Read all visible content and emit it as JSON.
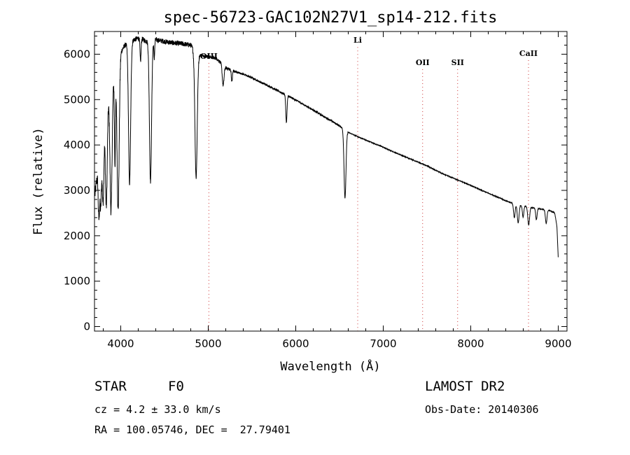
{
  "chart_data": {
    "type": "line",
    "title": "spec-56723-GAC102N27V1_sp14-212.fits",
    "xlabel": "Wavelength (Å)",
    "ylabel": "Flux (relative)",
    "xlim": [
      3700,
      9100
    ],
    "ylim": [
      -100,
      6500
    ],
    "xticks": [
      4000,
      5000,
      6000,
      7000,
      8000,
      9000
    ],
    "yticks": [
      0,
      1000,
      2000,
      3000,
      4000,
      5000,
      6000
    ],
    "grid": false,
    "line_color": "#000000",
    "marker_color": "#cc3333",
    "continuum": [
      [
        3705,
        2900
      ],
      [
        3730,
        3300
      ],
      [
        3760,
        4000
      ],
      [
        3800,
        4700
      ],
      [
        3840,
        5000
      ],
      [
        3880,
        5200
      ],
      [
        3920,
        5500
      ],
      [
        3960,
        5800
      ],
      [
        4000,
        6050
      ],
      [
        4050,
        6200
      ],
      [
        4100,
        6250
      ],
      [
        4150,
        6320
      ],
      [
        4200,
        6350
      ],
      [
        4250,
        6330
      ],
      [
        4300,
        6280
      ],
      [
        4350,
        6300
      ],
      [
        4400,
        6320
      ],
      [
        4450,
        6300
      ],
      [
        4500,
        6280
      ],
      [
        4600,
        6250
      ],
      [
        4700,
        6230
      ],
      [
        4800,
        6200
      ],
      [
        4850,
        6050
      ],
      [
        4900,
        5980
      ],
      [
        5000,
        5950
      ],
      [
        5100,
        5900
      ],
      [
        5200,
        5700
      ],
      [
        5300,
        5620
      ],
      [
        5400,
        5560
      ],
      [
        5500,
        5480
      ],
      [
        5600,
        5380
      ],
      [
        5700,
        5290
      ],
      [
        5800,
        5190
      ],
      [
        5900,
        5090
      ],
      [
        6000,
        4990
      ],
      [
        6100,
        4880
      ],
      [
        6200,
        4770
      ],
      [
        6300,
        4650
      ],
      [
        6400,
        4540
      ],
      [
        6500,
        4420
      ],
      [
        6600,
        4280
      ],
      [
        6700,
        4190
      ],
      [
        6800,
        4110
      ],
      [
        6900,
        4030
      ],
      [
        7000,
        3950
      ],
      [
        7100,
        3860
      ],
      [
        7200,
        3780
      ],
      [
        7300,
        3700
      ],
      [
        7400,
        3620
      ],
      [
        7500,
        3540
      ],
      [
        7600,
        3440
      ],
      [
        7700,
        3350
      ],
      [
        7800,
        3270
      ],
      [
        7900,
        3190
      ],
      [
        8000,
        3110
      ],
      [
        8100,
        3020
      ],
      [
        8200,
        2940
      ],
      [
        8300,
        2860
      ],
      [
        8400,
        2770
      ],
      [
        8500,
        2700
      ],
      [
        8600,
        2660
      ],
      [
        8700,
        2620
      ],
      [
        8800,
        2590
      ],
      [
        8900,
        2560
      ],
      [
        8960,
        2500
      ],
      [
        8985,
        2200
      ],
      [
        9000,
        1500
      ]
    ],
    "absorption_lines": [
      {
        "x": 3750,
        "depth": 1300,
        "width": 8
      },
      {
        "x": 3771,
        "depth": 1500,
        "width": 9
      },
      {
        "x": 3798,
        "depth": 1900,
        "width": 10
      },
      {
        "x": 3835,
        "depth": 2300,
        "width": 11
      },
      {
        "x": 3889,
        "depth": 2700,
        "width": 12
      },
      {
        "x": 3934,
        "depth": 2000,
        "width": 6
      },
      {
        "x": 3970,
        "depth": 3300,
        "width": 12
      },
      {
        "x": 4101,
        "depth": 3100,
        "width": 12
      },
      {
        "x": 4226,
        "depth": 500,
        "width": 6
      },
      {
        "x": 4340,
        "depth": 3100,
        "width": 12
      },
      {
        "x": 4383,
        "depth": 400,
        "width": 5
      },
      {
        "x": 4861,
        "depth": 2750,
        "width": 13
      },
      {
        "x": 5170,
        "depth": 450,
        "width": 10
      },
      {
        "x": 5270,
        "depth": 250,
        "width": 6
      },
      {
        "x": 5893,
        "depth": 600,
        "width": 7
      },
      {
        "x": 6563,
        "depth": 1500,
        "width": 11
      },
      {
        "x": 8498,
        "depth": 300,
        "width": 9
      },
      {
        "x": 8542,
        "depth": 400,
        "width": 10
      },
      {
        "x": 8598,
        "depth": 250,
        "width": 8
      },
      {
        "x": 8662,
        "depth": 400,
        "width": 10
      },
      {
        "x": 8750,
        "depth": 250,
        "width": 8
      },
      {
        "x": 8862,
        "depth": 300,
        "width": 9
      }
    ],
    "reference_lines": [
      {
        "label": "OIII",
        "x": 5007,
        "label_y": 5900
      },
      {
        "label": "Li",
        "x": 6708,
        "label_y": 6250
      },
      {
        "label": "OII",
        "x": 7450,
        "label_y": 5760
      },
      {
        "label": "SII",
        "x": 7850,
        "label_y": 5760
      },
      {
        "label": "CaII",
        "x": 8660,
        "label_y": 5960
      }
    ]
  },
  "info": {
    "object_class": "STAR",
    "subclass": "F0",
    "survey": "LAMOST DR2",
    "redshift": "cz = 4.2 ± 33.0 km/s",
    "obs_date": "Obs-Date: 20140306",
    "coords": "RA = 100.05746, DEC =  27.79401"
  }
}
